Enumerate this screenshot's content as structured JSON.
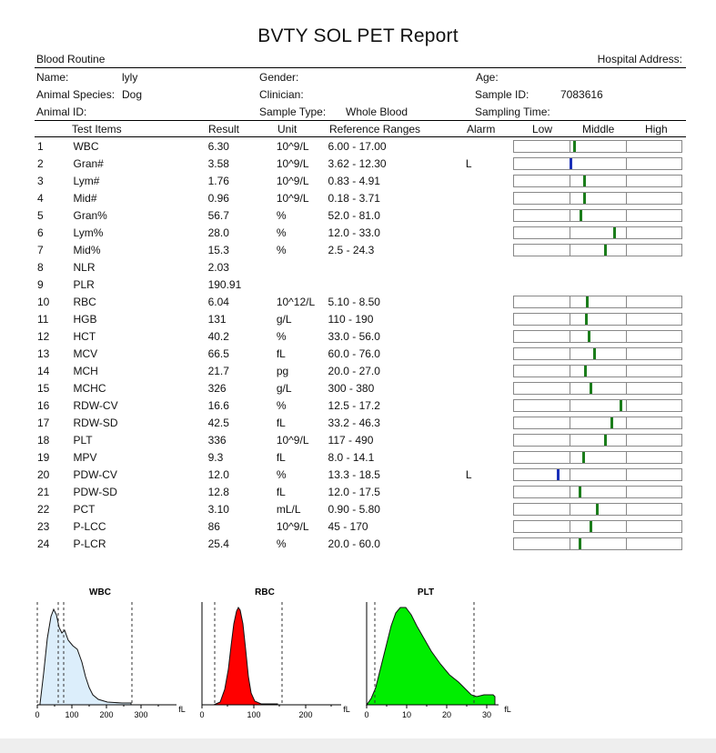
{
  "report": {
    "title": "BVTY SOL PET Report",
    "section": "Blood Routine",
    "hospital_address_label": "Hospital Address:"
  },
  "patient": {
    "name_label": "Name:",
    "name_value": "lyly",
    "gender_label": "Gender:",
    "age_label": "Age:",
    "species_label": "Animal Species:",
    "species_value": "Dog",
    "clinician_label": "Clinician:",
    "sample_id_label": "Sample ID:",
    "sample_id_value": "7083616",
    "animal_id_label": "Animal ID:",
    "sample_type_label": "Sample Type:",
    "sample_type_value": "Whole Blood",
    "sampling_time_label": "Sampling Time:"
  },
  "table": {
    "headers": {
      "items": "Test Items",
      "result": "Result",
      "unit": "Unit",
      "ref": "Reference Ranges",
      "alarm": "Alarm",
      "low": "Low",
      "middle": "Middle",
      "high": "High"
    },
    "rows": [
      {
        "no": "1",
        "item": "WBC",
        "result": "6.30",
        "unit": "10^9/L",
        "ref": "6.00 - 17.00",
        "alarm": "",
        "level": 0.04
      },
      {
        "no": "2",
        "item": "Gran#",
        "result": "3.58",
        "unit": "10^9/L",
        "ref": "3.62 - 12.30",
        "alarm": "L",
        "level": -0.01
      },
      {
        "no": "3",
        "item": "Lym#",
        "result": "1.76",
        "unit": "10^9/L",
        "ref": "0.83 - 4.91",
        "alarm": "",
        "level": 0.23
      },
      {
        "no": "4",
        "item": "Mid#",
        "result": "0.96",
        "unit": "10^9/L",
        "ref": "0.18 - 3.71",
        "alarm": "",
        "level": 0.22
      },
      {
        "no": "5",
        "item": "Gran%",
        "result": "56.7",
        "unit": "%",
        "ref": "52.0 - 81.0",
        "alarm": "",
        "level": 0.16
      },
      {
        "no": "6",
        "item": "Lym%",
        "result": "28.0",
        "unit": "%",
        "ref": "12.0 - 33.0",
        "alarm": "",
        "level": 0.76
      },
      {
        "no": "7",
        "item": "Mid%",
        "result": "15.3",
        "unit": "%",
        "ref": "2.5 - 24.3",
        "alarm": "",
        "level": 0.59
      },
      {
        "no": "8",
        "item": "NLR",
        "result": "2.03",
        "unit": "",
        "ref": "",
        "alarm": ""
      },
      {
        "no": "9",
        "item": "PLR",
        "result": "190.91",
        "unit": "",
        "ref": "",
        "alarm": ""
      },
      {
        "no": "10",
        "item": "RBC",
        "result": "6.04",
        "unit": "10^12/L",
        "ref": "5.10 - 8.50",
        "alarm": "",
        "level": 0.28
      },
      {
        "no": "11",
        "item": "HGB",
        "result": "131",
        "unit": "g/L",
        "ref": "110 - 190",
        "alarm": "",
        "level": 0.26
      },
      {
        "no": "12",
        "item": "HCT",
        "result": "40.2",
        "unit": "%",
        "ref": "33.0 - 56.0",
        "alarm": "",
        "level": 0.31
      },
      {
        "no": "13",
        "item": "MCV",
        "result": "66.5",
        "unit": "fL",
        "ref": "60.0 - 76.0",
        "alarm": "",
        "level": 0.41
      },
      {
        "no": "14",
        "item": "MCH",
        "result": "21.7",
        "unit": "pg",
        "ref": "20.0 - 27.0",
        "alarm": "",
        "level": 0.24
      },
      {
        "no": "15",
        "item": "MCHC",
        "result": "326",
        "unit": "g/L",
        "ref": "300 - 380",
        "alarm": "",
        "level": 0.33
      },
      {
        "no": "16",
        "item": "RDW-CV",
        "result": "16.6",
        "unit": "%",
        "ref": "12.5 - 17.2",
        "alarm": "",
        "level": 0.87
      },
      {
        "no": "17",
        "item": "RDW-SD",
        "result": "42.5",
        "unit": "fL",
        "ref": "33.2 - 46.3",
        "alarm": "",
        "level": 0.71
      },
      {
        "no": "18",
        "item": "PLT",
        "result": "336",
        "unit": "10^9/L",
        "ref": "117 - 490",
        "alarm": "",
        "level": 0.59
      },
      {
        "no": "19",
        "item": "MPV",
        "result": "9.3",
        "unit": "fL",
        "ref": "8.0 - 14.1",
        "alarm": "",
        "level": 0.21
      },
      {
        "no": "20",
        "item": "PDW-CV",
        "result": "12.0",
        "unit": "%",
        "ref": "13.3 - 18.5",
        "alarm": "L",
        "level": -0.25
      },
      {
        "no": "21",
        "item": "PDW-SD",
        "result": "12.8",
        "unit": "fL",
        "ref": "12.0 - 17.5",
        "alarm": "",
        "level": 0.15
      },
      {
        "no": "22",
        "item": "PCT",
        "result": "3.10",
        "unit": "mL/L",
        "ref": "0.90 - 5.80",
        "alarm": "",
        "level": 0.45
      },
      {
        "no": "23",
        "item": "P-LCC",
        "result": "86",
        "unit": "10^9/L",
        "ref": "45 - 170",
        "alarm": "",
        "level": 0.33
      },
      {
        "no": "24",
        "item": "P-LCR",
        "result": "25.4",
        "unit": "%",
        "ref": "20.0 - 60.0",
        "alarm": "",
        "level": 0.14
      }
    ]
  },
  "histograms": {
    "wbc": {
      "title": "WBC",
      "ticks": [
        "0",
        "100",
        "200",
        "300"
      ],
      "unit": "fL",
      "fill": "#dceefb"
    },
    "rbc": {
      "title": "RBC",
      "ticks": [
        "0",
        "100",
        "200"
      ],
      "unit": "fL",
      "fill": "#ff0000"
    },
    "plt": {
      "title": "PLT",
      "ticks": [
        "0",
        "10",
        "20",
        "30"
      ],
      "unit": "fL",
      "fill": "#00ee00"
    }
  },
  "colors": {
    "normal_marker": "#1b7d1b",
    "low_marker": "#1a2fb8"
  }
}
